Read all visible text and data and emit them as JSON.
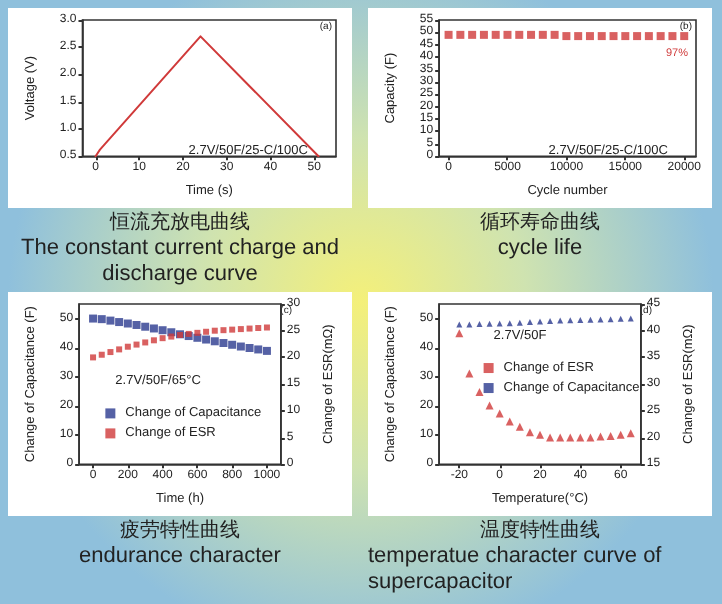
{
  "chart_data": [
    {
      "type": "line",
      "title": "恒流充放电曲线",
      "subtitle": "The constant current charge and discharge curve",
      "xlabel": "Time (s)",
      "ylabel": "Voltage (V)",
      "annotations": [
        "(a)",
        "2.7V/50F/25-C/100C"
      ],
      "x": [
        0,
        1,
        24,
        51
      ],
      "series": [
        {
          "color": "#d03a3a",
          "values": [
            0.5,
            0.62,
            2.7,
            0.5
          ]
        }
      ],
      "xlim": [
        -3,
        55
      ],
      "xticks": [
        0,
        10,
        20,
        30,
        40,
        50
      ],
      "ylim": [
        0.5,
        3.0
      ],
      "yticks": [
        0.5,
        {
          "value": 1,
          "label": "1.0"
        },
        1.5,
        {
          "value": 2,
          "label": "2.0"
        },
        2.5,
        {
          "value": 3,
          "label": "3.0"
        }
      ],
      "marker": "none",
      "line_style": "solid",
      "grid": false,
      "legend": false
    },
    {
      "type": "scatter",
      "title": "循环寿命曲线",
      "subtitle": "cycle life",
      "xlabel": "Cycle number",
      "ylabel": "Capacity (F)",
      "annotations": [
        "(b)",
        "2.7V/50F/25-C/100C",
        "97%"
      ],
      "x": [
        0,
        1000,
        2000,
        3000,
        4000,
        5000,
        6000,
        7000,
        8000,
        9000,
        10000,
        11000,
        12000,
        13000,
        14000,
        15000,
        16000,
        17000,
        18000,
        19000,
        20000
      ],
      "series": [
        {
          "color": "#d03a3a",
          "values": [
            49,
            49,
            49,
            49,
            49,
            49,
            49,
            49,
            49,
            49,
            48.5,
            48.5,
            48.5,
            48.5,
            48.5,
            48.5,
            48.5,
            48.5,
            48.5,
            48.5,
            48.5
          ]
        }
      ],
      "xlim": [
        -800,
        21000
      ],
      "xticks": [
        0,
        5000,
        10000,
        15000,
        20000
      ],
      "ylim": [
        0,
        55
      ],
      "yticks": [
        0,
        5,
        10,
        15,
        20,
        25,
        30,
        35,
        40,
        45,
        50,
        55
      ],
      "marker": "square",
      "grid": false,
      "legend": false
    },
    {
      "type": "scatter",
      "title": "疲劳特性曲线",
      "subtitle": "endurance character",
      "xlabel": "Time (h)",
      "ylabel": "Change of Capacitance (F)",
      "y2label": "Change of ESR(mΩ)",
      "legend_title": "2.7V/50F/65°C",
      "annotations": [
        "(c)"
      ],
      "x": [
        0,
        50,
        100,
        150,
        200,
        250,
        300,
        350,
        400,
        450,
        500,
        550,
        600,
        650,
        700,
        750,
        800,
        850,
        900,
        950,
        1000
      ],
      "series": [
        {
          "name": "Change of Capacitance",
          "color": "#2b3a8f",
          "values": [
            50,
            49.8,
            49.3,
            48.8,
            48.3,
            47.8,
            47.2,
            46.6,
            46,
            45.3,
            44.6,
            44,
            43.4,
            42.8,
            42.2,
            41.6,
            41,
            40.4,
            39.9,
            39.4,
            38.9
          ]
        },
        {
          "name": "Change of ESR",
          "color": "#d03a3a",
          "axis": "y2",
          "values": [
            20,
            20.5,
            21,
            21.5,
            22,
            22.4,
            22.8,
            23.2,
            23.6,
            23.9,
            24.2,
            24.4,
            24.6,
            24.8,
            25,
            25.1,
            25.2,
            25.3,
            25.4,
            25.5,
            25.6
          ]
        }
      ],
      "xlim": [
        -80,
        1080
      ],
      "xticks": [
        0,
        200,
        400,
        600,
        800,
        1000
      ],
      "ylim": [
        0,
        55
      ],
      "yticks": [
        0,
        10,
        20,
        30,
        40,
        50
      ],
      "y2lim": [
        0,
        30
      ],
      "y2ticks": [
        0,
        5,
        10,
        15,
        20,
        25,
        30
      ],
      "marker": "square",
      "grid": false,
      "legend": "bottom left"
    },
    {
      "type": "scatter",
      "title": "温度特性曲线",
      "subtitle": "temperatue character curve of supercapacitor",
      "xlabel": "Temperature(°C)",
      "ylabel": "Change of Capacitance (F)",
      "y2label": "Change of ESR(mΩ)",
      "legend_title": "2.7V/50F",
      "annotations": [
        "(d)"
      ],
      "x": [
        -20,
        -15,
        -10,
        -5,
        0,
        5,
        10,
        15,
        20,
        25,
        30,
        35,
        40,
        45,
        50,
        55,
        60,
        65
      ],
      "series": [
        {
          "name": "Change of ESR",
          "color": "#d03a3a",
          "axis": "y2",
          "values": [
            39.5,
            32,
            28.5,
            26,
            24.5,
            23,
            22,
            21,
            20.5,
            20,
            20,
            20,
            20,
            20,
            20.2,
            20.3,
            20.5,
            20.8
          ]
        },
        {
          "name": "Change of Capacitance",
          "color": "#2b3a8f",
          "values": [
            48,
            48,
            48.1,
            48.2,
            48.3,
            48.4,
            48.6,
            48.8,
            49,
            49.2,
            49.3,
            49.4,
            49.5,
            49.6,
            49.7,
            49.8,
            49.9,
            50
          ]
        }
      ],
      "xlim": [
        -30,
        70
      ],
      "xticks": [
        -20,
        0,
        20,
        40,
        60
      ],
      "ylim": [
        0,
        55
      ],
      "yticks": [
        0,
        10,
        20,
        30,
        40,
        50
      ],
      "y2lim": [
        15,
        45
      ],
      "y2ticks": [
        15,
        20,
        25,
        30,
        35,
        40,
        45
      ],
      "marker": "triangle",
      "grid": false,
      "legend": "top right"
    }
  ]
}
